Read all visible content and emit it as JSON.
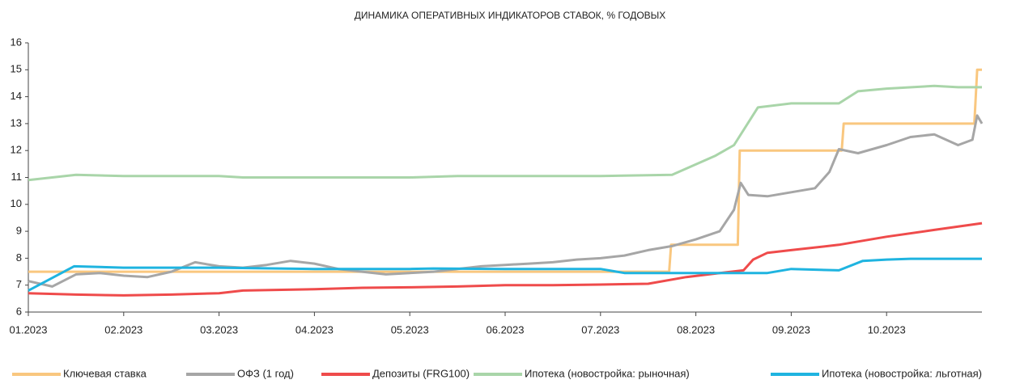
{
  "chart_data": {
    "type": "line",
    "title": "ДИНАМИКА ОПЕРАТИВНЫХ ИНДИКАТОРОВ СТАВОК, % ГОДОВЫХ",
    "xlim": [
      0,
      10
    ],
    "xticks": [
      {
        "value": 0,
        "label": "01.2023"
      },
      {
        "value": 1,
        "label": "02.2023"
      },
      {
        "value": 2,
        "label": "03.2023"
      },
      {
        "value": 3,
        "label": "04.2023"
      },
      {
        "value": 4,
        "label": "05.2023"
      },
      {
        "value": 5,
        "label": "06.2023"
      },
      {
        "value": 6,
        "label": "07.2023"
      },
      {
        "value": 7,
        "label": "08.2023"
      },
      {
        "value": 8,
        "label": "09.2023"
      },
      {
        "value": 9,
        "label": "10.2023"
      }
    ],
    "ylim": [
      6,
      16
    ],
    "yticks": [
      6,
      7,
      8,
      9,
      10,
      11,
      12,
      13,
      14,
      15,
      16
    ],
    "grid": false,
    "legend": "bottom",
    "series": [
      {
        "name": "Ключевая ставка",
        "color": "#f9c77f",
        "x": [
          0,
          6.72,
          6.74,
          7.44,
          7.46,
          8.53,
          8.55,
          9.92,
          9.95,
          10
        ],
        "values": [
          7.5,
          7.5,
          8.5,
          8.5,
          12,
          12,
          13,
          13,
          15,
          15
        ]
      },
      {
        "name": "ОФЗ (1 год)",
        "color": "#a6a6a6",
        "x": [
          0,
          0.25,
          0.5,
          0.75,
          1,
          1.25,
          1.5,
          1.75,
          2,
          2.25,
          2.5,
          2.75,
          3,
          3.25,
          3.5,
          3.75,
          4,
          4.25,
          4.5,
          4.75,
          5,
          5.25,
          5.5,
          5.75,
          6,
          6.25,
          6.5,
          6.75,
          7,
          7.25,
          7.4,
          7.47,
          7.55,
          7.75,
          8,
          8.25,
          8.4,
          8.5,
          8.7,
          9,
          9.25,
          9.5,
          9.75,
          9.9,
          9.95,
          10
        ],
        "values": [
          7.15,
          6.95,
          7.4,
          7.45,
          7.35,
          7.3,
          7.5,
          7.85,
          7.7,
          7.65,
          7.75,
          7.9,
          7.8,
          7.6,
          7.5,
          7.4,
          7.45,
          7.5,
          7.6,
          7.7,
          7.75,
          7.8,
          7.85,
          7.95,
          8.0,
          8.1,
          8.3,
          8.45,
          8.7,
          9.0,
          9.8,
          10.8,
          10.35,
          10.3,
          10.45,
          10.6,
          11.2,
          12.05,
          11.9,
          12.2,
          12.5,
          12.6,
          12.2,
          12.4,
          13.3,
          13.0
        ]
      },
      {
        "name": "Депозиты (FRG100)",
        "color": "#ef4b4b",
        "x": [
          0,
          0.5,
          1,
          1.5,
          2,
          2.25,
          3,
          3.5,
          4,
          4.5,
          5,
          5.5,
          6,
          6.5,
          6.9,
          7.25,
          7.5,
          7.6,
          7.75,
          8,
          8.5,
          9,
          9.5,
          10
        ],
        "values": [
          6.7,
          6.65,
          6.62,
          6.65,
          6.7,
          6.8,
          6.85,
          6.9,
          6.92,
          6.95,
          7.0,
          7.0,
          7.02,
          7.05,
          7.3,
          7.45,
          7.55,
          7.95,
          8.2,
          8.3,
          8.5,
          8.8,
          9.05,
          9.3
        ]
      },
      {
        "name": "Ипотека (новостройка: рыночная)",
        "color": "#a9d5a9",
        "x": [
          0,
          0.5,
          1,
          2,
          2.25,
          3,
          4,
          4.5,
          5,
          6,
          6.75,
          7.2,
          7.4,
          7.65,
          8,
          8.5,
          8.7,
          9,
          9.5,
          9.75,
          10
        ],
        "values": [
          10.9,
          11.1,
          11.05,
          11.05,
          11.0,
          11.0,
          11.0,
          11.05,
          11.05,
          11.05,
          11.1,
          11.8,
          12.2,
          13.6,
          13.75,
          13.75,
          14.2,
          14.3,
          14.4,
          14.35,
          14.35
        ]
      },
      {
        "name": "Ипотека (новостройка: льготная)",
        "color": "#1fb4e0",
        "x": [
          0,
          0.48,
          1,
          2,
          3,
          4,
          4.25,
          5,
          6,
          6.25,
          7,
          7.5,
          7.75,
          8,
          8.5,
          8.75,
          9,
          9.25,
          10
        ],
        "values": [
          6.8,
          7.7,
          7.65,
          7.65,
          7.6,
          7.6,
          7.62,
          7.6,
          7.6,
          7.45,
          7.45,
          7.45,
          7.45,
          7.6,
          7.55,
          7.9,
          7.95,
          7.98,
          7.98
        ]
      }
    ]
  }
}
